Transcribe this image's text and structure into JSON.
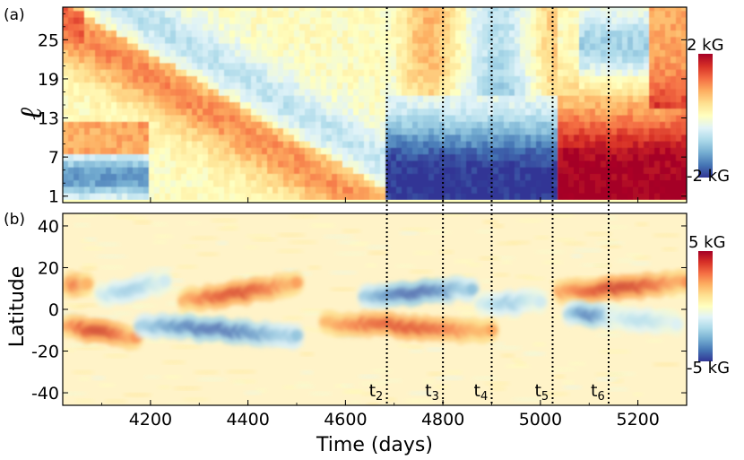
{
  "chart_data": [
    {
      "panel_label": "(a)",
      "type": "heatmap",
      "xlim": [
        4020,
        5300
      ],
      "ylim": [
        0,
        30
      ],
      "ylabel": "ℓ",
      "y_ticks": [
        1,
        7,
        13,
        19,
        25
      ],
      "colorbar": {
        "max_label": "2 kG",
        "min_label": "-2 kG",
        "range_kG": [
          -2,
          2
        ]
      },
      "features": [
        {
          "desc": "positive band",
          "l_start": 28,
          "l_end": 1,
          "t_start": 4040,
          "t_end": 4660,
          "value_kG": 1.3
        },
        {
          "desc": "negative band",
          "l_start": 30,
          "l_end": 1,
          "t_start": 4120,
          "t_end": 4760,
          "value_kG": -1.0
        },
        {
          "desc": "negative low-degree block",
          "l_start": 1,
          "l_end": 14,
          "t_start": 4680,
          "t_end": 5030,
          "value_kG": -2.0
        },
        {
          "desc": "positive low-degree block",
          "l_start": 1,
          "l_end": 14,
          "t_start": 5030,
          "t_end": 5300,
          "value_kG": 2.0
        }
      ]
    },
    {
      "panel_label": "(b)",
      "type": "heatmap",
      "xlim": [
        4020,
        5300
      ],
      "ylim": [
        -46,
        46
      ],
      "xlabel": "Time (days)",
      "ylabel": "Latitude",
      "x_ticks": [
        4200,
        4400,
        4600,
        4800,
        5000,
        5200
      ],
      "y_ticks": [
        40,
        20,
        0,
        -20,
        -40
      ],
      "colorbar": {
        "max_label": "5 kG",
        "min_label": "-5 kG",
        "range_kG": [
          -5,
          5
        ]
      },
      "features": [
        {
          "desc": "north positive",
          "t_start": 4030,
          "t_end": 4070,
          "lat_start": 12,
          "lat_end": 12,
          "value_kG": 3.5
        },
        {
          "desc": "north negative",
          "t_start": 4100,
          "t_end": 4230,
          "lat_start": 7,
          "lat_end": 13,
          "value_kG": -2.5
        },
        {
          "desc": "north positive",
          "t_start": 4270,
          "t_end": 4500,
          "lat_start": 4,
          "lat_end": 12,
          "value_kG": 4.2
        },
        {
          "desc": "north negative",
          "t_start": 4640,
          "t_end": 4860,
          "lat_start": 6,
          "lat_end": 10,
          "value_kG": -4.8
        },
        {
          "desc": "north negative",
          "t_start": 4880,
          "t_end": 5000,
          "lat_start": 2,
          "lat_end": 4,
          "value_kG": -2.5
        },
        {
          "desc": "north positive",
          "t_start": 5040,
          "t_end": 5300,
          "lat_start": 8,
          "lat_end": 13,
          "value_kG": 4.5
        },
        {
          "desc": "south positive",
          "t_start": 4030,
          "t_end": 4170,
          "lat_start": -8,
          "lat_end": -14,
          "value_kG": 4.5
        },
        {
          "desc": "south negative",
          "t_start": 4180,
          "t_end": 4500,
          "lat_start": -7,
          "lat_end": -13,
          "value_kG": -4.6
        },
        {
          "desc": "south positive",
          "t_start": 4560,
          "t_end": 4900,
          "lat_start": -6,
          "lat_end": -11,
          "value_kG": 4.0
        },
        {
          "desc": "south negative",
          "t_start": 5060,
          "t_end": 5150,
          "lat_start": -2,
          "lat_end": -4,
          "value_kG": -4.2
        },
        {
          "desc": "south negative tail",
          "t_start": 5150,
          "t_end": 5280,
          "lat_start": -4,
          "lat_end": -6,
          "value_kG": -2.0
        }
      ]
    }
  ],
  "markers": [
    {
      "label": "t",
      "sub": "2",
      "time": 4685
    },
    {
      "label": "t",
      "sub": "3",
      "time": 4800
    },
    {
      "label": "t",
      "sub": "4",
      "time": 4900
    },
    {
      "label": "t",
      "sub": "5",
      "time": 5025
    },
    {
      "label": "t",
      "sub": "6",
      "time": 5140
    }
  ],
  "colormap": [
    "#313695",
    "#4575b4",
    "#74add1",
    "#abd9e9",
    "#e0f3f8",
    "#ffffbf",
    "#fee090",
    "#fdae61",
    "#f46d43",
    "#d73027",
    "#a50026"
  ]
}
